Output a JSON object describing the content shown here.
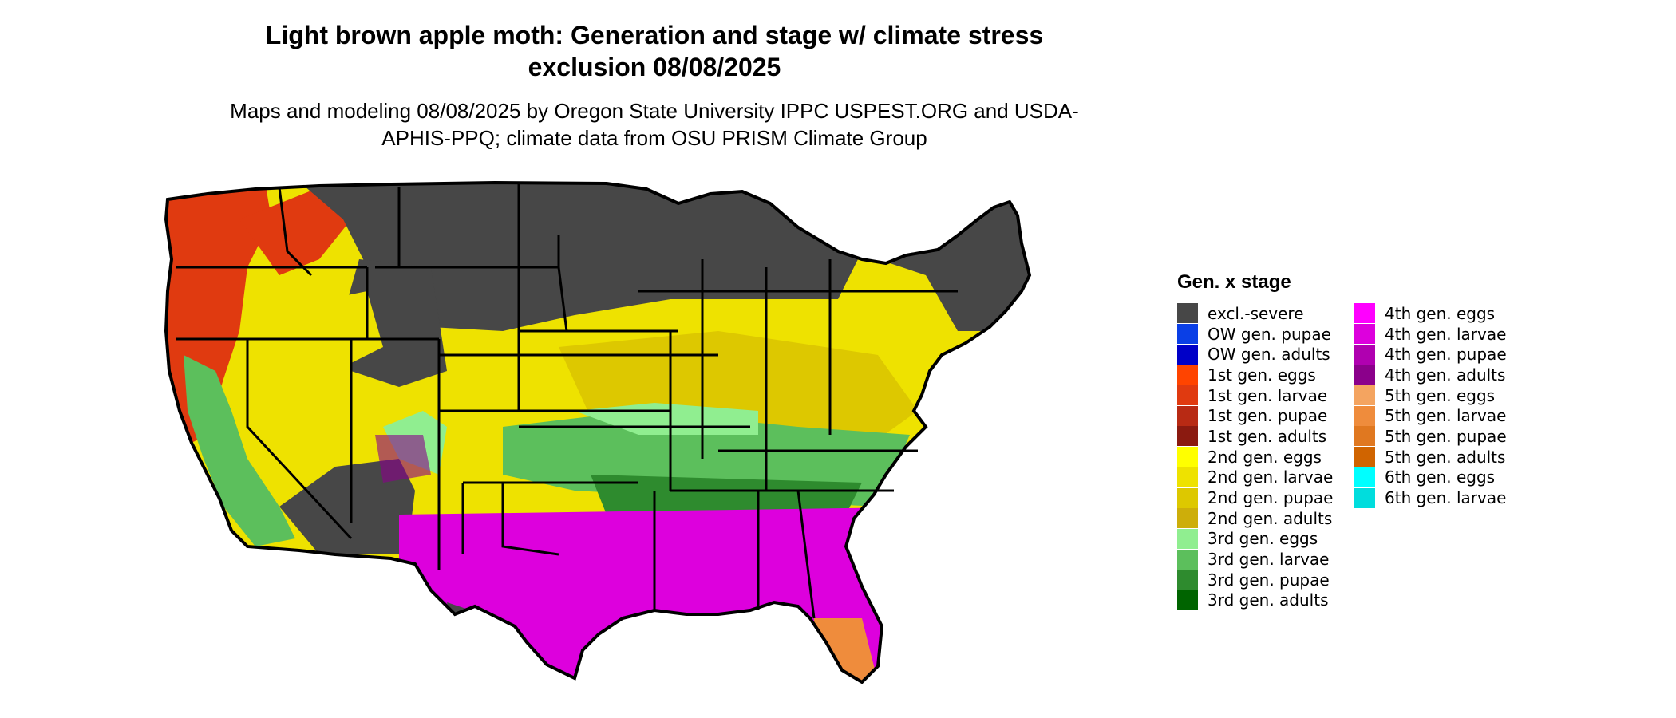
{
  "title": "Light brown apple moth: Generation and stage w/ climate stress exclusion 08/08/2025",
  "subtitle": "Maps and modeling 08/08/2025 by Oregon State University IPPC USPEST.ORG and USDA-APHIS-PPQ; climate data from OSU PRISM Climate Group",
  "legend": {
    "title": "Gen. x stage",
    "items": [
      {
        "label": "excl.-severe",
        "color": "#474747"
      },
      {
        "label": "OW gen. pupae",
        "color": "#0a3fe6"
      },
      {
        "label": "OW gen. adults",
        "color": "#0000c8"
      },
      {
        "label": "1st gen. eggs",
        "color": "#ff4400"
      },
      {
        "label": "1st gen. larvae",
        "color": "#e03a10"
      },
      {
        "label": "1st gen. pupae",
        "color": "#b82a14"
      },
      {
        "label": "1st gen. adults",
        "color": "#8b1a10"
      },
      {
        "label": "2nd gen. eggs",
        "color": "#ffff00"
      },
      {
        "label": "2nd gen. larvae",
        "color": "#eee200"
      },
      {
        "label": "2nd gen. pupae",
        "color": "#ddc800"
      },
      {
        "label": "2nd gen. adults",
        "color": "#cdae0a"
      },
      {
        "label": "3rd gen. eggs",
        "color": "#90ee90"
      },
      {
        "label": "3rd gen. larvae",
        "color": "#5cbf5c"
      },
      {
        "label": "3rd gen. pupae",
        "color": "#2e8b2e"
      },
      {
        "label": "3rd gen. adults",
        "color": "#006400"
      },
      {
        "label": "4th gen. eggs",
        "color": "#ff00ff"
      },
      {
        "label": "4th gen. larvae",
        "color": "#dd00dd"
      },
      {
        "label": "4th gen. pupae",
        "color": "#b000b0"
      },
      {
        "label": "4th gen. adults",
        "color": "#8b008b"
      },
      {
        "label": "5th gen. eggs",
        "color": "#f4a460"
      },
      {
        "label": "5th gen. larvae",
        "color": "#ef8c3c"
      },
      {
        "label": "5th gen. pupae",
        "color": "#e07820"
      },
      {
        "label": "5th gen. adults",
        "color": "#d06400"
      },
      {
        "label": "6th gen. eggs",
        "color": "#00ffff"
      },
      {
        "label": "6th gen. larvae",
        "color": "#00dddd"
      }
    ]
  }
}
